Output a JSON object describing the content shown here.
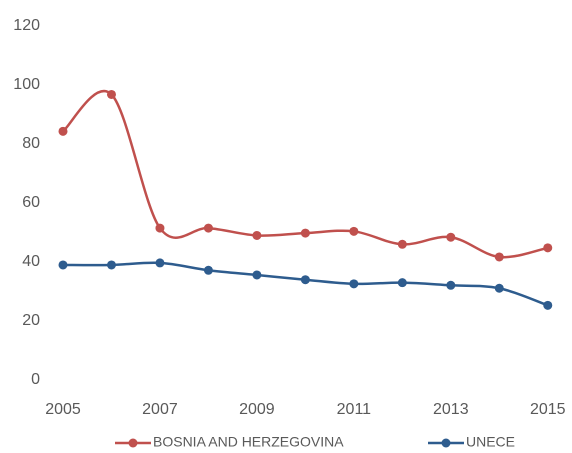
{
  "chart_data": {
    "type": "line",
    "x": [
      2005,
      2006,
      2007,
      2008,
      2009,
      2010,
      2011,
      2012,
      2013,
      2014,
      2015
    ],
    "series": [
      {
        "name": "BOSNIA AND HERZEGOVINA",
        "color": "#c0504d",
        "values": [
          84.3,
          96.8,
          51.5,
          51.5,
          49,
          49.8,
          50.4,
          46,
          48.4,
          41.7,
          44.8
        ]
      },
      {
        "name": "UNECE",
        "color": "#2e5c8e",
        "values": [
          39,
          39,
          39.7,
          37.2,
          35.6,
          34,
          32.6,
          33,
          32.1,
          31.1,
          25.3
        ]
      }
    ],
    "xlim": [
      2005,
      2015.5
    ],
    "xticks": [
      2005,
      2007,
      2009,
      2011,
      2013,
      2015
    ],
    "ylim": [
      0,
      120
    ],
    "yticks": [
      0,
      20,
      40,
      60,
      80,
      100,
      120
    ],
    "grid": false,
    "legend": "bottom"
  }
}
